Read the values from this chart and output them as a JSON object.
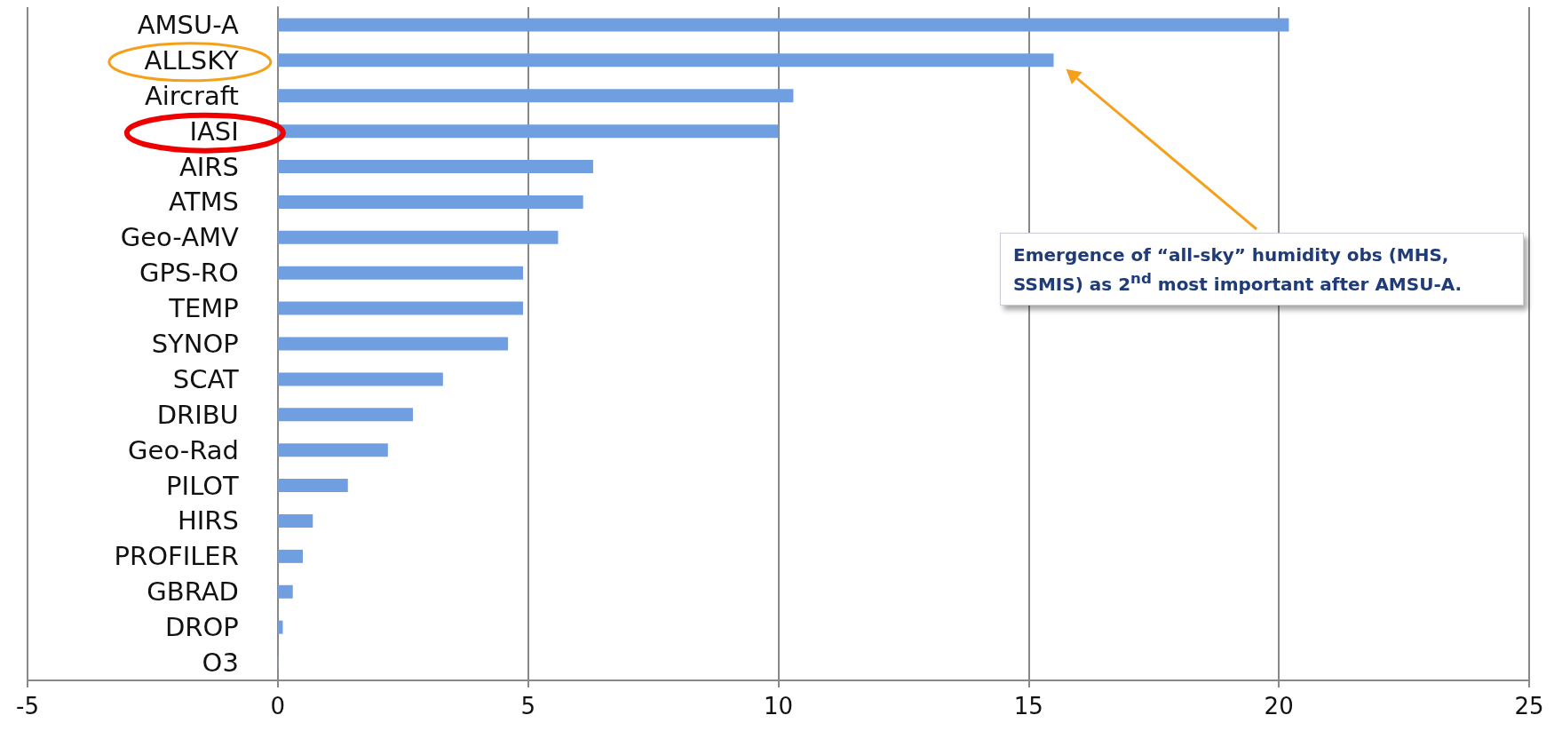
{
  "chart_data": {
    "type": "bar",
    "orientation": "horizontal",
    "categories": [
      "AMSU-A",
      "ALLSKY",
      "Aircraft",
      "IASI",
      "AIRS",
      "ATMS",
      "Geo-AMV",
      "GPS-RO",
      "TEMP",
      "SYNOP",
      "SCAT",
      "DRIBU",
      "Geo-Rad",
      "PILOT",
      "HIRS",
      "PROFILER",
      "GBRAD",
      "DROP",
      "O3"
    ],
    "values": [
      20.2,
      15.5,
      10.3,
      10.0,
      6.3,
      6.1,
      5.6,
      4.9,
      4.9,
      4.6,
      3.3,
      2.7,
      2.2,
      1.4,
      0.7,
      0.5,
      0.3,
      0.1,
      0.02
    ],
    "color": "#6f9fe0",
    "xlim": [
      -5,
      25
    ],
    "xticks": [
      -5,
      0,
      5,
      10,
      15,
      20,
      25
    ],
    "grid": "x",
    "annotations": [
      "Emergence of “all-sky” humidity obs (MHS, SSMIS) as 2$^{nd}$ most important after AMSU-A."
    ]
  }
}
